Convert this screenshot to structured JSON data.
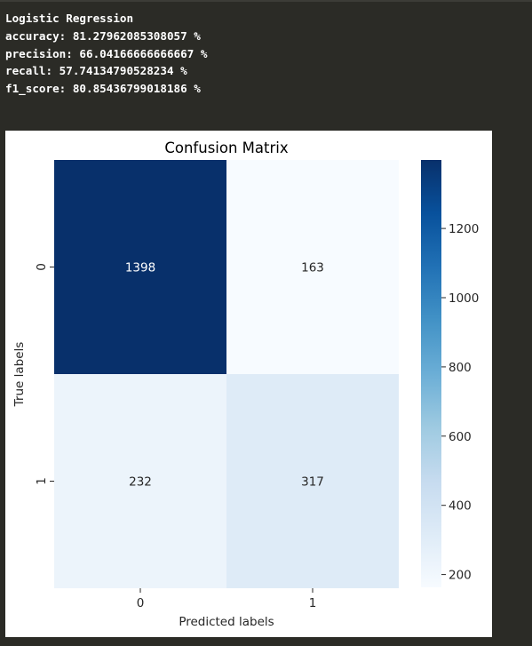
{
  "output": {
    "lines": [
      "Logistic Regression",
      "accuracy: 81.27962085308057 %",
      "precision: 66.04166666666667 %",
      "recall: 57.74134790528234 %",
      "f1_score: 80.85436799018186 %"
    ]
  },
  "chart_data": {
    "type": "heatmap",
    "title": "Confusion Matrix",
    "xlabel": "Predicted labels",
    "ylabel": "True labels",
    "x_categories": [
      "0",
      "1"
    ],
    "y_categories": [
      "0",
      "1"
    ],
    "values": [
      [
        1398,
        163
      ],
      [
        232,
        317
      ]
    ],
    "colormap": "Blues",
    "color_range": [
      163,
      1398
    ],
    "colorbar_ticks": [
      200,
      400,
      600,
      800,
      1000,
      1200
    ],
    "annotations": true,
    "grid": false
  }
}
